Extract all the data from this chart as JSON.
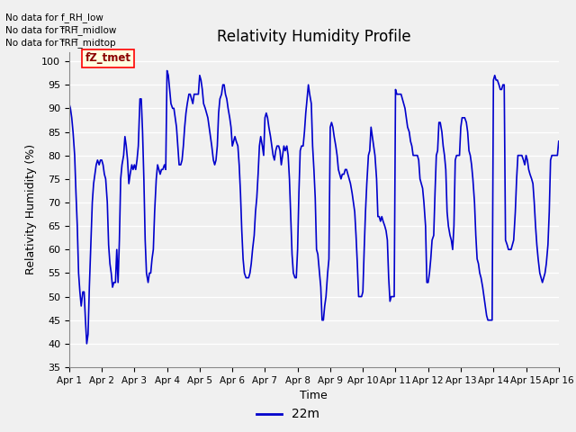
{
  "title": "Relativity Humidity Profile",
  "xlabel": "Time",
  "ylabel": "Relativity Humidity (%)",
  "ylim": [
    35,
    102
  ],
  "yticks": [
    35,
    40,
    45,
    50,
    55,
    60,
    65,
    70,
    75,
    80,
    85,
    90,
    95,
    100
  ],
  "line_color": "#0000CC",
  "line_width": 1.2,
  "legend_label": "22m",
  "legend_color": "#0000CC",
  "no_data_texts": [
    "No data for f_RH_low",
    "No data for f̅RH̅_midlow",
    "No data for f̅RH̅_midtop"
  ],
  "tz_tmet_label": "fZ_tmet",
  "figure_facecolor": "#F0F0F0",
  "plot_bg_color": "#F0F0F0",
  "x_start": 0,
  "x_end": 15,
  "x_tick_labels": [
    "Apr 1",
    "Apr 2",
    "Apr 3",
    "Apr 4",
    "Apr 5",
    "Apr 6",
    "Apr 7",
    "Apr 8",
    "Apr 9",
    "Apr 10",
    "Apr 11",
    "Apr 12",
    "Apr 13",
    "Apr 14",
    "Apr 15",
    "Apr 16"
  ],
  "x_tick_positions": [
    0,
    1,
    2,
    3,
    4,
    5,
    6,
    7,
    8,
    9,
    10,
    11,
    12,
    13,
    14,
    15
  ],
  "data_x": [
    0.0,
    0.04,
    0.08,
    0.12,
    0.17,
    0.21,
    0.25,
    0.29,
    0.33,
    0.37,
    0.42,
    0.46,
    0.5,
    0.54,
    0.58,
    0.62,
    0.67,
    0.71,
    0.75,
    0.79,
    0.83,
    0.87,
    0.92,
    0.96,
    1.0,
    1.04,
    1.08,
    1.12,
    1.17,
    1.21,
    1.25,
    1.29,
    1.33,
    1.37,
    1.42,
    1.46,
    1.5,
    1.54,
    1.58,
    1.62,
    1.67,
    1.71,
    1.75,
    1.79,
    1.83,
    1.87,
    1.92,
    1.96,
    2.0,
    2.04,
    2.08,
    2.12,
    2.17,
    2.21,
    2.25,
    2.29,
    2.33,
    2.37,
    2.42,
    2.46,
    2.5,
    2.54,
    2.58,
    2.62,
    2.67,
    2.71,
    2.75,
    2.79,
    2.83,
    2.87,
    2.92,
    2.96,
    3.0,
    3.04,
    3.08,
    3.12,
    3.17,
    3.21,
    3.25,
    3.29,
    3.33,
    3.37,
    3.42,
    3.46,
    3.5,
    3.54,
    3.58,
    3.62,
    3.67,
    3.71,
    3.75,
    3.79,
    3.83,
    3.87,
    3.92,
    3.96,
    4.0,
    4.04,
    4.08,
    4.12,
    4.17,
    4.21,
    4.25,
    4.29,
    4.33,
    4.37,
    4.42,
    4.46,
    4.5,
    4.54,
    4.58,
    4.62,
    4.67,
    4.71,
    4.75,
    4.79,
    4.83,
    4.87,
    4.92,
    4.96,
    5.0,
    5.04,
    5.08,
    5.12,
    5.17,
    5.21,
    5.25,
    5.29,
    5.33,
    5.37,
    5.42,
    5.46,
    5.5,
    5.54,
    5.58,
    5.62,
    5.67,
    5.71,
    5.75,
    5.79,
    5.83,
    5.87,
    5.92,
    5.96,
    6.0,
    6.04,
    6.08,
    6.12,
    6.17,
    6.21,
    6.25,
    6.29,
    6.33,
    6.37,
    6.42,
    6.46,
    6.5,
    6.54,
    6.58,
    6.62,
    6.67,
    6.71,
    6.75,
    6.79,
    6.83,
    6.87,
    6.92,
    6.96,
    7.0,
    7.04,
    7.08,
    7.12,
    7.17,
    7.21,
    7.25,
    7.29,
    7.33,
    7.37,
    7.42,
    7.46,
    7.5,
    7.54,
    7.58,
    7.62,
    7.67,
    7.71,
    7.75,
    7.79,
    7.83,
    7.87,
    7.92,
    7.96,
    8.0,
    8.04,
    8.08,
    8.12,
    8.17,
    8.21,
    8.25,
    8.29,
    8.33,
    8.37,
    8.42,
    8.46,
    8.5,
    8.54,
    8.58,
    8.62,
    8.67,
    8.71,
    8.75,
    8.79,
    8.83,
    8.87,
    8.92,
    8.96,
    9.0,
    9.04,
    9.08,
    9.12,
    9.17,
    9.21,
    9.25,
    9.29,
    9.33,
    9.37,
    9.42,
    9.46,
    9.5,
    9.54,
    9.58,
    9.62,
    9.67,
    9.71,
    9.75,
    9.79,
    9.83,
    9.87,
    9.92,
    9.96,
    10.0,
    10.04,
    10.08,
    10.12,
    10.17,
    10.21,
    10.25,
    10.29,
    10.33,
    10.37,
    10.42,
    10.46,
    10.5,
    10.54,
    10.58,
    10.62,
    10.67,
    10.71,
    10.75,
    10.79,
    10.83,
    10.87,
    10.92,
    10.96,
    11.0,
    11.04,
    11.08,
    11.12,
    11.17,
    11.21,
    11.25,
    11.29,
    11.33,
    11.37,
    11.42,
    11.46,
    11.5,
    11.54,
    11.58,
    11.62,
    11.67,
    11.71,
    11.75,
    11.79,
    11.83,
    11.87,
    11.92,
    11.96,
    12.0,
    12.04,
    12.08,
    12.12,
    12.17,
    12.21,
    12.25,
    12.29,
    12.33,
    12.37,
    12.42,
    12.46,
    12.5,
    12.54,
    12.58,
    12.62,
    12.67,
    12.71,
    12.75,
    12.79,
    12.83,
    12.87,
    12.92,
    12.96,
    13.0,
    13.04,
    13.08,
    13.12,
    13.17,
    13.21,
    13.25,
    13.29,
    13.33,
    13.37,
    13.42,
    13.46,
    13.5,
    13.54,
    13.58,
    13.62,
    13.67,
    13.71,
    13.75,
    13.79,
    13.83,
    13.87,
    13.92,
    13.96,
    14.0,
    14.04,
    14.08,
    14.12,
    14.17,
    14.21,
    14.25,
    14.29,
    14.33,
    14.37,
    14.42,
    14.46,
    14.5,
    14.54,
    14.58,
    14.62,
    14.67,
    14.71,
    14.75,
    14.79,
    14.83,
    14.87,
    14.92,
    14.96,
    15.0
  ],
  "data_y": [
    91,
    90,
    88,
    85,
    80,
    72,
    65,
    55,
    51,
    48,
    51,
    51,
    45,
    40,
    42,
    52,
    62,
    70,
    74,
    76,
    78,
    79,
    78,
    79,
    79,
    78,
    76,
    75,
    70,
    61,
    57,
    55,
    52,
    53,
    53,
    60,
    53,
    62,
    75,
    78,
    80,
    84,
    82,
    79,
    74,
    76,
    78,
    77,
    78,
    77,
    79,
    82,
    92,
    92,
    85,
    75,
    62,
    55,
    53,
    55,
    55,
    58,
    60,
    68,
    75,
    78,
    77,
    76,
    77,
    77,
    78,
    77,
    98,
    97,
    94,
    91,
    90,
    90,
    88,
    86,
    82,
    78,
    78,
    79,
    82,
    86,
    89,
    91,
    93,
    93,
    92,
    91,
    93,
    93,
    93,
    93,
    97,
    96,
    94,
    91,
    90,
    89,
    88,
    86,
    84,
    82,
    79,
    78,
    79,
    82,
    89,
    92,
    93,
    95,
    95,
    93,
    92,
    90,
    88,
    86,
    82,
    83,
    84,
    83,
    82,
    78,
    72,
    64,
    58,
    55,
    54,
    54,
    54,
    55,
    57,
    60,
    63,
    68,
    71,
    76,
    82,
    84,
    82,
    80,
    88,
    89,
    88,
    86,
    84,
    82,
    80,
    79,
    81,
    82,
    82,
    81,
    78,
    80,
    82,
    81,
    82,
    80,
    75,
    67,
    59,
    55,
    54,
    54,
    60,
    72,
    81,
    82,
    82,
    85,
    89,
    92,
    95,
    93,
    91,
    82,
    77,
    71,
    60,
    59,
    55,
    52,
    45,
    45,
    48,
    50,
    55,
    58,
    86,
    87,
    86,
    84,
    82,
    80,
    77,
    76,
    75,
    76,
    76,
    77,
    77,
    76,
    75,
    74,
    72,
    70,
    68,
    63,
    57,
    50,
    50,
    50,
    51,
    60,
    68,
    74,
    80,
    81,
    86,
    84,
    82,
    80,
    75,
    67,
    67,
    66,
    67,
    66,
    65,
    64,
    62,
    54,
    49,
    50,
    50,
    50,
    94,
    93,
    93,
    93,
    93,
    92,
    91,
    90,
    88,
    86,
    85,
    83,
    82,
    80,
    80,
    80,
    80,
    79,
    75,
    74,
    73,
    70,
    65,
    53,
    53,
    55,
    58,
    62,
    63,
    72,
    80,
    81,
    87,
    87,
    85,
    82,
    80,
    77,
    68,
    65,
    63,
    62,
    60,
    65,
    79,
    80,
    80,
    80,
    86,
    88,
    88,
    88,
    87,
    85,
    81,
    80,
    78,
    75,
    70,
    63,
    58,
    57,
    55,
    54,
    52,
    50,
    48,
    46,
    45,
    45,
    45,
    45,
    96,
    97,
    96,
    96,
    95,
    94,
    94,
    95,
    95,
    62,
    61,
    60,
    60,
    60,
    61,
    62,
    68,
    75,
    80,
    80,
    80,
    80,
    79,
    78,
    80,
    79,
    77,
    76,
    75,
    74,
    70,
    65,
    61,
    58,
    55,
    54,
    53,
    54,
    55,
    57,
    61,
    68,
    79,
    80,
    80,
    80,
    80,
    80,
    83
  ]
}
